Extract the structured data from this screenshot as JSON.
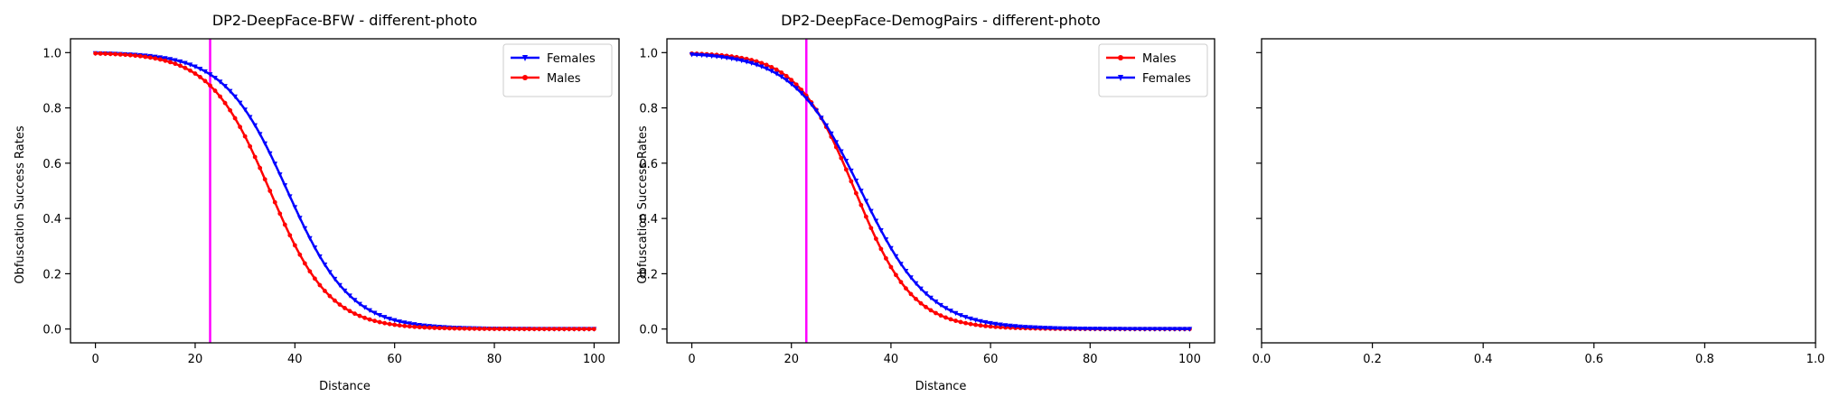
{
  "chart_data": [
    {
      "type": "line",
      "title": "DP2-DeepFace-BFW - different-photo",
      "xlabel": "Distance",
      "ylabel": "Obfuscation Success Rates",
      "xlim": [
        -5,
        105
      ],
      "ylim": [
        -0.05,
        1.05
      ],
      "xticks": [
        "0",
        "20",
        "40",
        "60",
        "80",
        "100"
      ],
      "yticks": [
        "0.0",
        "0.2",
        "0.4",
        "0.6",
        "0.8",
        "1.0"
      ],
      "vline": {
        "x": 23,
        "color": "#ff00ff"
      },
      "legend": "upper right",
      "grid": false,
      "series": [
        {
          "name": "Females",
          "color": "#0000ff",
          "marker": "triangle-down",
          "midpoint": 38.5,
          "width": 6.3
        },
        {
          "name": "Males",
          "color": "#ff0000",
          "marker": "circle",
          "midpoint": 35,
          "width": 6.0
        }
      ]
    },
    {
      "type": "line",
      "title": "DP2-DeepFace-DemogPairs - different-photo",
      "xlabel": "Distance",
      "ylabel": "Obfuscation Success Rates",
      "xlim": [
        -5,
        105
      ],
      "ylim": [
        -0.05,
        1.05
      ],
      "xticks": [
        "0",
        "20",
        "40",
        "60",
        "80",
        "100"
      ],
      "yticks": [
        "0.0",
        "0.2",
        "0.4",
        "0.6",
        "0.8",
        "1.0"
      ],
      "vline": {
        "x": 23,
        "color": "#ff00ff"
      },
      "legend": "upper right",
      "grid": false,
      "series": [
        {
          "name": "Males",
          "color": "#ff0000",
          "marker": "circle",
          "midpoint": 32.8,
          "width": 5.8
        },
        {
          "name": "Females",
          "color": "#0000ff",
          "marker": "triangle-down",
          "midpoint": 34,
          "width": 6.8
        }
      ]
    },
    {
      "type": "line",
      "title": "",
      "xlabel": "",
      "ylabel": "",
      "xlim": [
        0,
        1
      ],
      "ylim": [
        -0.05,
        1.05
      ],
      "xticks": [
        "0.0",
        "0.2",
        "0.4",
        "0.6",
        "0.8",
        "1.0"
      ],
      "yticks": [],
      "series": []
    }
  ]
}
